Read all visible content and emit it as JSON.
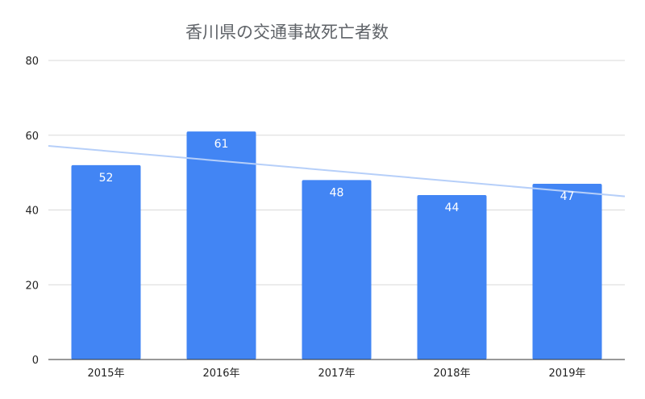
{
  "chart_data": {
    "type": "bar",
    "title": "香川県の交通事故死亡者数",
    "xlabel": "",
    "ylabel": "",
    "categories": [
      "2015年",
      "2016年",
      "2017年",
      "2018年",
      "2019年"
    ],
    "series": [
      {
        "values": [
          52,
          61,
          48,
          44,
          47
        ]
      }
    ],
    "ylim": [
      0,
      80
    ],
    "yticks": [
      0,
      20,
      40,
      60,
      80
    ],
    "grid": true,
    "trendline": {
      "type": "linear"
    },
    "colors": {
      "bar": "#4285f4",
      "trendline": "#b6cff9",
      "grid": "#d9d9d9",
      "axis": "#333333"
    }
  }
}
